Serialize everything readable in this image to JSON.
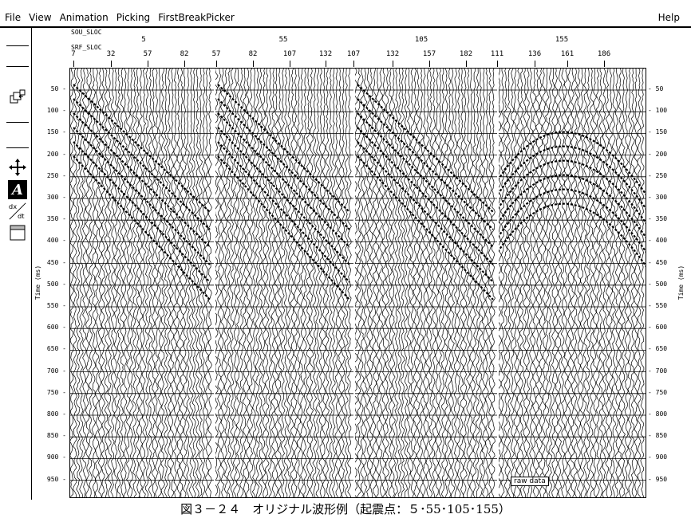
{
  "menu": {
    "file": "File",
    "view": "View",
    "animation": "Animation",
    "picking": "Picking",
    "firstbreak": "FirstBreakPicker",
    "help": "Help"
  },
  "header": {
    "sou_label": "SOU_SLOC",
    "srf_label": "SRF_SLOC",
    "sou_ticks": [
      "5",
      "55",
      "105",
      "155"
    ],
    "srf_ticks": [
      "7",
      "32",
      "57",
      "82",
      "57",
      "82",
      "107",
      "132",
      "107",
      "132",
      "157",
      "182",
      "111",
      "136",
      "161",
      "186"
    ]
  },
  "yaxis": {
    "label": "Time (ms)",
    "ticks": [
      "50",
      "100",
      "150",
      "200",
      "250",
      "300",
      "350",
      "400",
      "450",
      "500",
      "550",
      "600",
      "650",
      "700",
      "750",
      "800",
      "850",
      "900",
      "950"
    ]
  },
  "plot": {
    "annotation": "raw data"
  },
  "tools": {
    "dxdt": "dx/dt",
    "a_label": "A"
  },
  "caption": "図３－２４　オリジナル波形例（起震点：５･55･105･155）"
}
